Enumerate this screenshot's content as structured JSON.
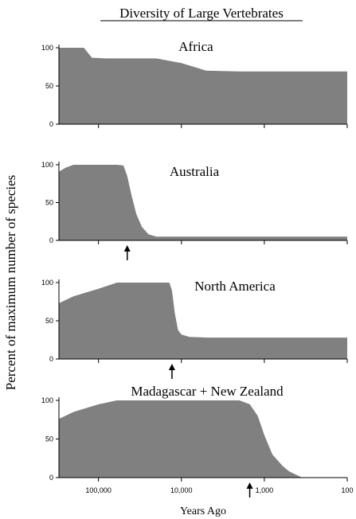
{
  "title": "Diversity of Large Vertebrates",
  "ylabel": "Percent of maximum number of species",
  "xlabel": "Years Ago",
  "fill_color": "#808080",
  "x_axis": {
    "scale": "log",
    "direction": "decreasing-left-to-right",
    "xlim": [
      300000,
      100
    ],
    "ticks": [
      100000,
      10000,
      1000,
      100
    ],
    "tick_labels": [
      "100,000",
      "10,000",
      "1,000",
      "100"
    ]
  },
  "y_ticks": [
    0,
    50,
    100
  ],
  "y_tick_labels": [
    "0",
    "50",
    "100"
  ],
  "chart_data": [
    {
      "type": "area",
      "title": "Africa",
      "ylim": [
        0,
        100
      ],
      "x": [
        300000,
        150000,
        120000,
        80000,
        20000,
        10000,
        5000,
        2000,
        1000,
        500,
        100
      ],
      "y": [
        100,
        100,
        87,
        86,
        86,
        80,
        70,
        69,
        69,
        69,
        69
      ],
      "arrow_x": null
    },
    {
      "type": "area",
      "title": "Australia",
      "ylim": [
        0,
        100
      ],
      "x": [
        300000,
        250000,
        200000,
        150000,
        100000,
        60000,
        50000,
        45000,
        40000,
        35000,
        30000,
        25000,
        20000,
        15000,
        10000,
        5000,
        1000,
        100
      ],
      "y": [
        91,
        96,
        100,
        100,
        100,
        100,
        99,
        85,
        60,
        35,
        18,
        8,
        5,
        5,
        5,
        5,
        5,
        5
      ],
      "arrow_x": 45000
    },
    {
      "type": "area",
      "title": "North America",
      "ylim": [
        0,
        100
      ],
      "x": [
        300000,
        200000,
        100000,
        60000,
        40000,
        20000,
        14000,
        13000,
        12000,
        11000,
        10000,
        8000,
        5000,
        2000,
        1000,
        100
      ],
      "y": [
        73,
        82,
        92,
        100,
        100,
        100,
        100,
        90,
        60,
        38,
        32,
        29,
        28,
        28,
        28,
        28
      ],
      "arrow_x": 13000
    },
    {
      "type": "area",
      "title": "Madagascar + New Zealand",
      "ylim": [
        0,
        100
      ],
      "x": [
        300000,
        200000,
        100000,
        60000,
        30000,
        10000,
        3000,
        2000,
        1500,
        1200,
        1000,
        800,
        600,
        500,
        350
      ],
      "y": [
        76,
        85,
        95,
        100,
        100,
        100,
        100,
        100,
        95,
        80,
        55,
        30,
        15,
        8,
        0
      ],
      "arrow_x": 1500
    }
  ]
}
